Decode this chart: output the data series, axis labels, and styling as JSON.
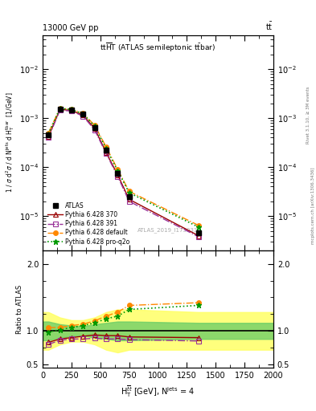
{
  "title_top_left": "13000 GeV pp",
  "title_top_right": "t$\\bar{t}$",
  "title_main": "tt$\\overline{H}$T (ATLAS semileptonic t$\\bar{t}$bar)",
  "watermark": "ATLAS_2019_I1750330",
  "right_label_top": "Rivet 3.1.10, ≥ 3M events",
  "right_label_bot": "mcplots.cern.ch [arXiv:1306.3436]",
  "ylabel_main": "1 / σ d²σ / d Nᵉʲˢ d Hₜᵀᵊᵇʳ [1/GeV]",
  "ylabel_ratio": "Ratio to ATLAS",
  "xlabel": "H$_\\mathrm{T}^{\\mathrm{tbar{t}}}$ [GeV], N$^\\mathrm{jets}$ = 4",
  "x_data": [
    50,
    150,
    250,
    350,
    450,
    550,
    650,
    750,
    1350
  ],
  "atlas_y": [
    0.00045,
    0.00155,
    0.00145,
    0.0012,
    0.00065,
    0.00022,
    7.5e-05,
    2.5e-05,
    4.5e-06
  ],
  "py370_y": [
    0.00042,
    0.00152,
    0.00143,
    0.00115,
    0.00062,
    0.0002,
    7e-05,
    2.2e-05,
    4e-06
  ],
  "py391_y": [
    0.0004,
    0.00145,
    0.0014,
    0.0011,
    0.00058,
    0.00019,
    6.5e-05,
    2e-05,
    3.8e-06
  ],
  "pydef_y": [
    0.0005,
    0.0016,
    0.00152,
    0.00125,
    0.00072,
    0.00026,
    9e-05,
    3.2e-05,
    6.5e-06
  ],
  "pyq2o_y": [
    0.00048,
    0.00158,
    0.0015,
    0.00122,
    0.00069,
    0.00024,
    8.5e-05,
    3e-05,
    6e-06
  ],
  "ratio_py370": [
    0.83,
    0.88,
    0.9,
    0.92,
    0.94,
    0.93,
    0.93,
    0.91,
    0.9
  ],
  "ratio_py391": [
    0.8,
    0.86,
    0.88,
    0.88,
    0.89,
    0.88,
    0.88,
    0.87,
    0.85
  ],
  "ratio_pydef": [
    1.05,
    1.05,
    1.08,
    1.1,
    1.15,
    1.22,
    1.28,
    1.38,
    1.42
  ],
  "ratio_pyq2o": [
    0.98,
    1.02,
    1.05,
    1.08,
    1.12,
    1.18,
    1.22,
    1.32,
    1.38
  ],
  "band_x": [
    0,
    50,
    150,
    250,
    350,
    450,
    550,
    650,
    750,
    1350,
    2000
  ],
  "band_yellow_lo": [
    0.72,
    0.72,
    0.8,
    0.84,
    0.84,
    0.8,
    0.72,
    0.68,
    0.72,
    0.72,
    0.72
  ],
  "band_yellow_hi": [
    1.28,
    1.28,
    1.2,
    1.16,
    1.16,
    1.2,
    1.28,
    1.32,
    1.32,
    1.28,
    1.28
  ],
  "band_green_lo": [
    0.86,
    0.86,
    0.9,
    0.92,
    0.93,
    0.9,
    0.88,
    0.86,
    0.86,
    0.88,
    0.88
  ],
  "band_green_hi": [
    1.14,
    1.14,
    1.1,
    1.08,
    1.07,
    1.1,
    1.12,
    1.14,
    1.14,
    1.12,
    1.12
  ],
  "color_atlas": "#000000",
  "color_py370": "#990000",
  "color_py391": "#993399",
  "color_pydef": "#ff8800",
  "color_pyq2o": "#009900",
  "color_yellow": "#ffff66",
  "color_green": "#66cc66",
  "xlim": [
    0,
    2000
  ],
  "ylim_main": [
    2e-06,
    0.05
  ],
  "ylim_ratio": [
    0.45,
    2.2
  ],
  "yticks_ratio": [
    0.5,
    1.0,
    2.0
  ],
  "bg_color": "#ffffff",
  "legend_entries": [
    "ATLAS",
    "Pythia 6.428 370",
    "Pythia 6.428 391",
    "Pythia 6.428 default",
    "Pythia 6.428 pro-q2o"
  ]
}
